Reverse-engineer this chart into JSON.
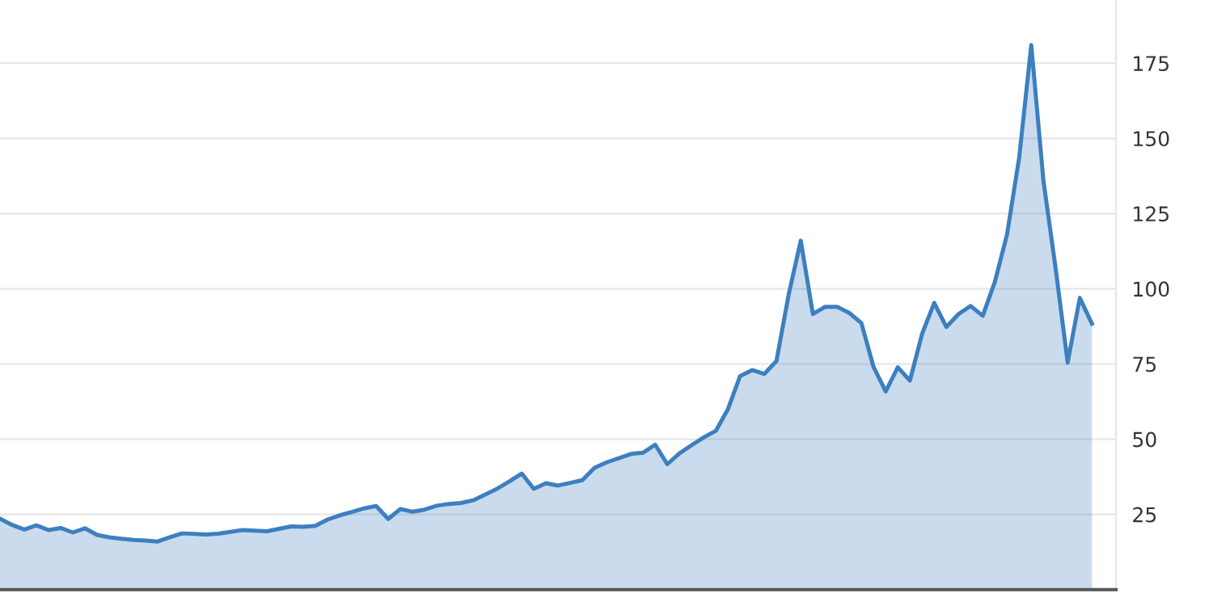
{
  "chart_data": {
    "type": "area",
    "color": "#3d7fc0",
    "categories": [
      null,
      null,
      null,
      null,
      null,
      null,
      null,
      null,
      null,
      null,
      null,
      null,
      null,
      null,
      null,
      null,
      null,
      null,
      null,
      null,
      null,
      null,
      null,
      null,
      null,
      null,
      null,
      null,
      null,
      null,
      null,
      null,
      null,
      null,
      null,
      null,
      null,
      null,
      null,
      null,
      null,
      null,
      null,
      null,
      null,
      null,
      null,
      null,
      null,
      null,
      null,
      null,
      null,
      null,
      null,
      null,
      null,
      null,
      null,
      null,
      null,
      null,
      null,
      null,
      null,
      null,
      null,
      null,
      null,
      null,
      null,
      null,
      null,
      null,
      null,
      null,
      null,
      null,
      null,
      null,
      null,
      null,
      null,
      null,
      null,
      null,
      null,
      null,
      null,
      null,
      null
    ],
    "values": [
      23.6,
      21.5,
      20,
      21.4,
      19.8,
      20.5,
      19,
      20.4,
      18.2,
      17.4,
      16.9,
      16.5,
      16.3,
      16,
      17.4,
      18.7,
      18.5,
      18.3,
      18.6,
      19.2,
      19.8,
      19.6,
      19.4,
      20.2,
      21,
      20.9,
      21.2,
      23.3,
      24.7,
      25.8,
      27,
      27.8,
      23.5,
      26.8,
      25.9,
      26.6,
      27.9,
      28.5,
      28.8,
      29.7,
      31.6,
      33.6,
      36,
      38.6,
      33.5,
      35.4,
      34.6,
      35.5,
      36.4,
      40.5,
      42.3,
      43.7,
      45.1,
      45.5,
      48.2,
      41.7,
      45.3,
      48,
      50.6,
      52.8,
      60,
      71,
      73,
      71.7,
      76,
      98,
      116,
      91.6,
      94,
      94,
      92,
      88.6,
      74,
      65.9,
      73.9,
      69.5,
      85,
      95.3,
      87.3,
      91.6,
      94.3,
      91,
      102.3,
      118,
      143.5,
      181,
      136,
      107,
      75.5,
      97,
      88.4
    ],
    "ylim": [
      0,
      196
    ],
    "yticks": [
      25,
      50,
      75,
      100,
      125,
      150,
      175
    ],
    "grid": "y",
    "tick_labels": "y"
  }
}
